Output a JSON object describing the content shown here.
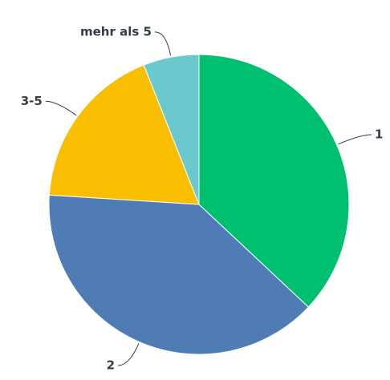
{
  "chart_data": {
    "type": "pie",
    "categories": [
      "1",
      "2",
      "3-5",
      "mehr als 5"
    ],
    "values": [
      37,
      39,
      18,
      6
    ],
    "colors": [
      "#00bf6f",
      "#507cb6",
      "#f9be00",
      "#6bc8cd"
    ]
  }
}
